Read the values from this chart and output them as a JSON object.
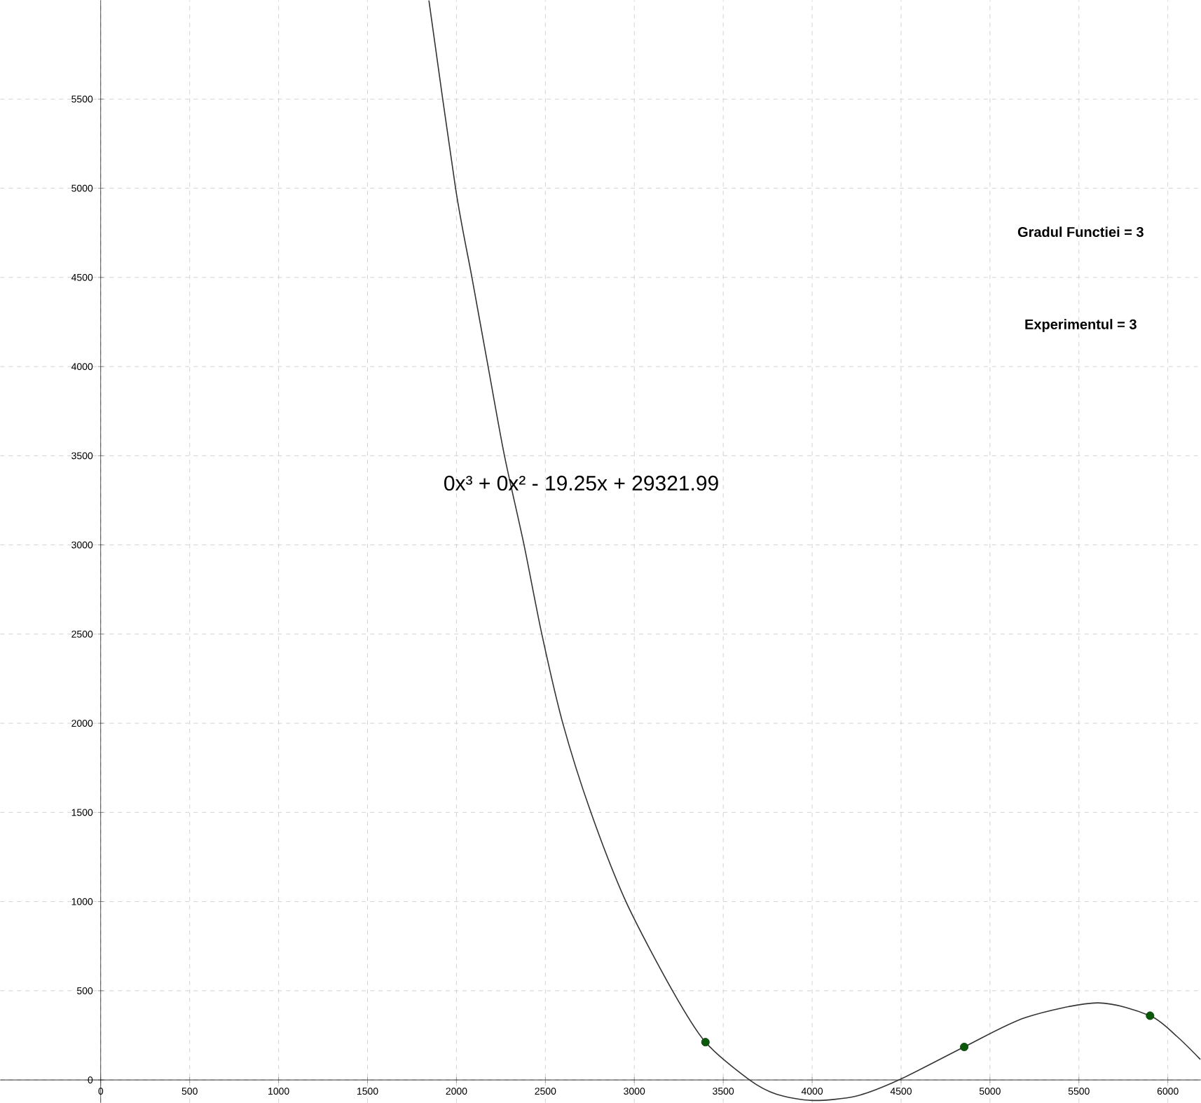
{
  "chart_data": {
    "type": "line",
    "xlim": [
      -565,
      6185
    ],
    "ylim": [
      -128,
      6054
    ],
    "xticks": [
      0,
      500,
      1000,
      1500,
      2000,
      2500,
      3000,
      3500,
      4000,
      4500,
      5000,
      5500,
      6000
    ],
    "yticks": [
      0,
      500,
      1000,
      1500,
      2000,
      2500,
      3000,
      3500,
      4000,
      4500,
      5000,
      5500
    ],
    "grid": true,
    "series": [
      {
        "color": "#333333",
        "marker": "none",
        "x": [
          1845,
          1995,
          2087,
          2178,
          2270,
          2380,
          2480,
          2598,
          2756,
          2953,
          3215,
          3400,
          3648,
          3800,
          4002,
          4250,
          4488,
          4855,
          5200,
          5603,
          5900,
          6050,
          6183
        ],
        "values": [
          6054,
          5000,
          4500,
          4000,
          3500,
          3000,
          2500,
          2000,
          1500,
          1000,
          500,
          212,
          0,
          -80,
          -115,
          -90,
          0,
          185,
          350,
          432,
          360,
          245,
          115
        ]
      },
      {
        "type": "scatter",
        "color": "#0b5a0b",
        "marker": "circle",
        "x": [
          3400,
          4855,
          5900
        ],
        "values": [
          212,
          185,
          360
        ]
      }
    ],
    "annotations": [
      "0x³ + 0x² - 19.25x + 29321.99",
      "Gradul Functiei  = 3",
      "Experimentul = 3"
    ]
  }
}
